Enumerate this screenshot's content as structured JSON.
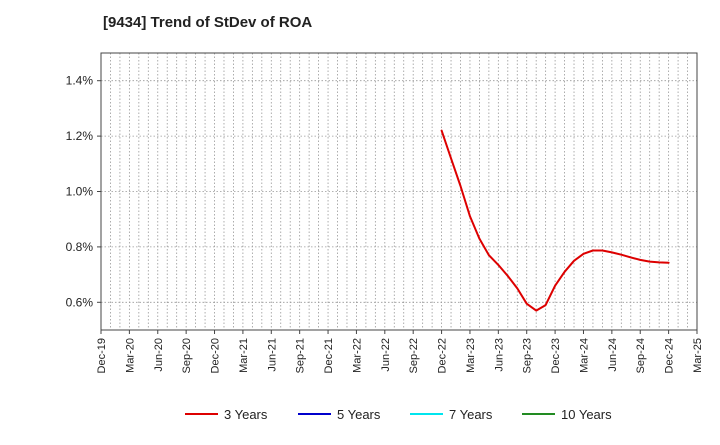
{
  "chart_data": {
    "type": "line",
    "title": "[9434]  Trend of StDev of ROA",
    "xlabel": "",
    "ylabel": "",
    "x_ticks": [
      "Dec-19",
      "Mar-20",
      "Jun-20",
      "Sep-20",
      "Dec-20",
      "Mar-21",
      "Jun-21",
      "Sep-21",
      "Dec-21",
      "Mar-22",
      "Jun-22",
      "Sep-22",
      "Dec-22",
      "Mar-23",
      "Jun-23",
      "Sep-23",
      "Dec-23",
      "Mar-24",
      "Jun-24",
      "Sep-24",
      "Dec-24",
      "Mar-25"
    ],
    "y_ticks": [
      "0.6%",
      "0.8%",
      "1.0%",
      "1.2%",
      "1.4%"
    ],
    "y_tick_values": [
      0.6,
      0.8,
      1.0,
      1.2,
      1.4
    ],
    "ylim": [
      0.5,
      1.5
    ],
    "grid": true,
    "legend_position": "bottom",
    "series": [
      {
        "name": "3 Years",
        "color": "#dd0000",
        "points": [
          [
            "Dec-22",
            1.22
          ],
          [
            "Jan-23",
            1.12
          ],
          [
            "Feb-23",
            1.02
          ],
          [
            "Mar-23",
            0.91
          ],
          [
            "Apr-23",
            0.83
          ],
          [
            "May-23",
            0.77
          ],
          [
            "Jun-23",
            0.735
          ],
          [
            "Jul-23",
            0.695
          ],
          [
            "Aug-23",
            0.65
          ],
          [
            "Sep-23",
            0.595
          ],
          [
            "Oct-23",
            0.57
          ],
          [
            "Nov-23",
            0.59
          ],
          [
            "Dec-23",
            0.66
          ],
          [
            "Jan-24",
            0.71
          ],
          [
            "Feb-24",
            0.75
          ],
          [
            "Mar-24",
            0.775
          ],
          [
            "Apr-24",
            0.787
          ],
          [
            "May-24",
            0.787
          ],
          [
            "Jun-24",
            0.78
          ],
          [
            "Jul-24",
            0.772
          ],
          [
            "Aug-24",
            0.762
          ],
          [
            "Sep-24",
            0.753
          ],
          [
            "Oct-24",
            0.747
          ],
          [
            "Nov-24",
            0.744
          ],
          [
            "Dec-24",
            0.743
          ]
        ]
      },
      {
        "name": "5 Years",
        "color": "#0000cc",
        "points": []
      },
      {
        "name": "7 Years",
        "color": "#00e5ee",
        "points": []
      },
      {
        "name": "10 Years",
        "color": "#228b22",
        "points": []
      }
    ]
  }
}
